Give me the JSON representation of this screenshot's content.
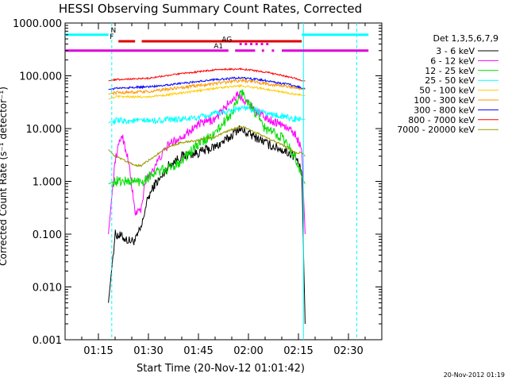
{
  "chart_data": {
    "type": "line",
    "title": "HESSI Observing Summary Count Rates, Corrected",
    "xlabel": "Start Time (20-Nov-12 01:01:42)",
    "ylabel": "Corrected Count Rate (s⁻¹ detector⁻¹)",
    "footer": "20-Nov-2012 01:19",
    "yscale": "log",
    "ylim": [
      0.001,
      1000
    ],
    "xlim": [
      "01:05",
      "02:40"
    ],
    "x_unit": "minutes after 01:00 UT",
    "y_ticks": [
      "1000.000",
      "100.000",
      "10.000",
      "1.000",
      "0.100",
      "0.010",
      "0.001"
    ],
    "x_ticks": [
      {
        "t": 15,
        "label": "01:15"
      },
      {
        "t": 30,
        "label": "01:30"
      },
      {
        "t": 45,
        "label": "01:45"
      },
      {
        "t": 60,
        "label": "02:00"
      },
      {
        "t": 75,
        "label": "02:15"
      },
      {
        "t": 90,
        "label": "02:30"
      }
    ],
    "legend": {
      "title": "Det 1,3,5,6,7,9",
      "placement": "right"
    },
    "series": [
      {
        "name": "3 - 6 keV",
        "color": "#000000",
        "x": [
          18,
          20,
          22,
          24,
          26,
          28,
          29,
          30,
          32,
          34,
          36,
          40,
          45,
          50,
          54,
          57,
          60,
          63,
          66,
          70,
          74,
          76,
          77
        ],
        "y": [
          0.005,
          0.1,
          0.09,
          0.075,
          0.075,
          0.14,
          0.3,
          0.5,
          0.9,
          1.2,
          2.0,
          3.0,
          3.5,
          4.5,
          6.5,
          10.0,
          8.0,
          6.5,
          5.0,
          4.0,
          3.0,
          1.5,
          0.002
        ]
      },
      {
        "name": "6 - 12 keV",
        "color": "#ff00ff",
        "x": [
          18,
          20,
          22,
          24,
          26,
          28,
          29,
          32,
          36,
          40,
          45,
          50,
          54,
          57,
          60,
          63,
          66,
          70,
          74,
          76,
          77
        ],
        "y": [
          0.1,
          2.5,
          8.0,
          2.5,
          0.25,
          0.3,
          1.0,
          2.0,
          5.0,
          7.0,
          12.0,
          15.0,
          30.0,
          45.0,
          30.0,
          20.0,
          15.0,
          12.0,
          8.0,
          4.0,
          0.1
        ]
      },
      {
        "name": "12 - 25 keV",
        "color": "#00dd00",
        "x": [
          18,
          20,
          24,
          28,
          32,
          36,
          40,
          45,
          50,
          55,
          58,
          61,
          65,
          70,
          74,
          76,
          77
        ],
        "y": [
          0.9,
          1.0,
          1.0,
          1.0,
          1.5,
          1.7,
          2.5,
          5.0,
          8.0,
          20.0,
          50.0,
          25.0,
          10.0,
          7.0,
          3.0,
          1.2,
          0.9
        ]
      },
      {
        "name": "25 - 50 keV",
        "color": "#00ffff",
        "x": [
          18,
          20,
          30,
          40,
          45,
          50,
          55,
          58,
          62,
          66,
          70,
          74,
          76,
          77
        ],
        "y": [
          13.0,
          14.0,
          14.0,
          15.0,
          16.0,
          19.0,
          22.0,
          25.0,
          22.0,
          19.0,
          17.0,
          15.0,
          15.0,
          15.0
        ]
      },
      {
        "name": "50 - 100 keV",
        "color": "#ffcc00",
        "x": [
          18,
          20,
          30,
          40,
          50,
          58,
          66,
          74,
          76,
          77
        ],
        "y": [
          36.0,
          40.0,
          40.0,
          47.0,
          58.0,
          65.0,
          55.0,
          45.0,
          43.0,
          42.0
        ]
      },
      {
        "name": "100 - 300 keV",
        "color": "#ff9900",
        "x": [
          18,
          20,
          30,
          40,
          50,
          58,
          66,
          74,
          76,
          77
        ],
        "y": [
          45.0,
          48.0,
          50.0,
          60.0,
          72.0,
          82.0,
          70.0,
          60.0,
          55.0,
          55.0
        ]
      },
      {
        "name": "300 - 800 keV",
        "color": "#0000ff",
        "x": [
          18,
          20,
          30,
          40,
          50,
          58,
          66,
          74,
          76,
          77
        ],
        "y": [
          55.0,
          58.0,
          62.0,
          72.0,
          85.0,
          92.0,
          80.0,
          65.0,
          58.0,
          58.0
        ]
      },
      {
        "name": "800 - 7000 keV",
        "color": "#ff0000",
        "x": [
          18,
          20,
          30,
          40,
          50,
          58,
          66,
          74,
          76,
          77
        ],
        "y": [
          80.0,
          85.0,
          90.0,
          110.0,
          130.0,
          135.0,
          115.0,
          90.0,
          80.0,
          80.0
        ]
      },
      {
        "name": "7000 - 20000 keV",
        "color": "#999900",
        "x": [
          18,
          20,
          26,
          28,
          30,
          36,
          40,
          45,
          50,
          54,
          58,
          62,
          66,
          70,
          74,
          76,
          77
        ],
        "y": [
          4.0,
          3.0,
          2.0,
          2.0,
          2.5,
          4.5,
          5.5,
          6.0,
          7.0,
          9.0,
          11.0,
          8.5,
          6.5,
          5.0,
          3.5,
          3.5,
          3.0
        ]
      }
    ],
    "vertical_lines": [
      {
        "t": 19,
        "color": "#00ffff",
        "style": "dashed"
      },
      {
        "t": 76.5,
        "color": "#00ffff",
        "style": "solid"
      },
      {
        "t": 92.5,
        "color": "#00ffff",
        "style": "dashed"
      }
    ],
    "flag_bars": [
      {
        "label": "N",
        "color": "#00ffff",
        "y": 600,
        "segments": [
          [
            5,
            18
          ],
          [
            76,
            96
          ]
        ]
      },
      {
        "label": "F",
        "color": "#dd0000",
        "y": 450,
        "segments": [
          [
            21,
            26
          ],
          [
            28,
            76
          ]
        ]
      },
      {
        "label": "AG",
        "color": "#dd00dd",
        "y": 400,
        "segments": [
          [
            57.3,
            58.0
          ],
          [
            58.9,
            59.6
          ],
          [
            60.5,
            61.2
          ],
          [
            62.1,
            62.8
          ],
          [
            63.7,
            64.4
          ],
          [
            65.3,
            66.0
          ]
        ]
      },
      {
        "label": "A1",
        "color": "#dd00dd",
        "y": 300,
        "segments": [
          [
            5,
            54
          ],
          [
            56,
            62
          ],
          [
            64,
            64.7
          ],
          [
            67,
            67.7
          ],
          [
            70,
            96
          ]
        ]
      }
    ]
  }
}
